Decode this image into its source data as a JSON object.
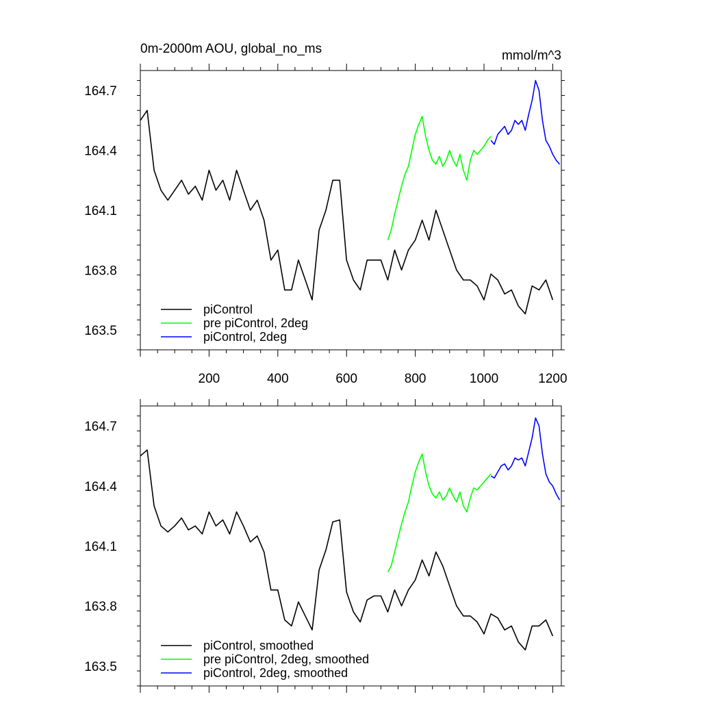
{
  "chart_data": [
    {
      "type": "line",
      "title": "0m-2000m AOU, global_no_ms",
      "units": "mmol/m^3",
      "xlim": [
        0,
        1225
      ],
      "ylim": [
        163.4,
        164.8
      ],
      "x_ticks": [
        200,
        400,
        600,
        800,
        1000,
        1200
      ],
      "x_tick_labels": [
        "200",
        "400",
        "600",
        "800",
        "1000",
        "1200"
      ],
      "y_ticks": [
        163.5,
        163.8,
        164.1,
        164.4,
        164.7
      ],
      "y_tick_labels": [
        "163.5",
        "163.8",
        "164.1",
        "164.4",
        "164.7"
      ],
      "legend_position": "bottom-left",
      "series": [
        {
          "name": "piControl",
          "color": "#000000",
          "x": [
            0,
            20,
            40,
            60,
            80,
            100,
            120,
            140,
            160,
            180,
            200,
            220,
            240,
            260,
            280,
            300,
            320,
            340,
            360,
            380,
            400,
            420,
            440,
            460,
            480,
            500,
            520,
            540,
            560,
            580,
            600,
            620,
            640,
            660,
            680,
            700,
            720,
            740,
            760,
            780,
            800,
            820,
            840,
            860,
            880,
            900,
            920,
            940,
            960,
            980,
            1000,
            1020,
            1040,
            1060,
            1080,
            1100,
            1120,
            1140,
            1160,
            1180,
            1200
          ],
          "y": [
            164.55,
            164.6,
            164.3,
            164.2,
            164.15,
            164.2,
            164.25,
            164.18,
            164.22,
            164.15,
            164.3,
            164.2,
            164.25,
            164.15,
            164.3,
            164.2,
            164.1,
            164.15,
            164.05,
            163.85,
            163.9,
            163.7,
            163.7,
            163.85,
            163.75,
            163.65,
            164.0,
            164.1,
            164.25,
            164.25,
            163.85,
            163.75,
            163.7,
            163.85,
            163.85,
            163.85,
            163.75,
            163.9,
            163.8,
            163.9,
            163.95,
            164.05,
            163.95,
            164.1,
            164.0,
            163.9,
            163.8,
            163.75,
            163.75,
            163.72,
            163.65,
            163.78,
            163.75,
            163.68,
            163.7,
            163.62,
            163.58,
            163.72,
            163.7,
            163.75,
            163.65
          ]
        },
        {
          "name": "pre piControl, 2deg",
          "color": "#00ff00",
          "x": [
            720,
            730,
            740,
            750,
            760,
            770,
            780,
            790,
            800,
            810,
            820,
            830,
            840,
            850,
            860,
            870,
            880,
            890,
            900,
            910,
            920,
            930,
            940,
            950,
            960,
            970,
            980,
            990,
            1000,
            1010,
            1020
          ],
          "y": [
            163.95,
            164.0,
            164.08,
            164.15,
            164.22,
            164.28,
            164.32,
            164.4,
            164.48,
            164.53,
            164.57,
            164.47,
            164.4,
            164.35,
            164.33,
            164.37,
            164.32,
            164.35,
            164.4,
            164.35,
            164.32,
            164.38,
            164.3,
            164.25,
            164.35,
            164.4,
            164.38,
            164.4,
            164.42,
            164.45,
            164.47
          ]
        },
        {
          "name": "piControl, 2deg",
          "color": "#0000ff",
          "x": [
            1020,
            1030,
            1040,
            1050,
            1060,
            1070,
            1080,
            1090,
            1100,
            1110,
            1120,
            1130,
            1140,
            1150,
            1160,
            1170,
            1180,
            1190,
            1200,
            1210,
            1220
          ],
          "y": [
            164.45,
            164.43,
            164.48,
            164.5,
            164.52,
            164.48,
            164.5,
            164.55,
            164.53,
            164.55,
            164.5,
            164.58,
            164.65,
            164.75,
            164.7,
            164.55,
            164.45,
            164.42,
            164.38,
            164.35,
            164.33
          ]
        }
      ]
    },
    {
      "type": "line",
      "title": "",
      "units": "",
      "xlim": [
        0,
        1225
      ],
      "ylim": [
        163.4,
        164.8
      ],
      "x_ticks": [
        200,
        400,
        600,
        800,
        1000,
        1200
      ],
      "x_tick_labels": [],
      "y_ticks": [
        163.5,
        163.8,
        164.1,
        164.4,
        164.7
      ],
      "y_tick_labels": [
        "163.5",
        "163.8",
        "164.1",
        "164.4",
        "164.7"
      ],
      "legend_position": "bottom-left",
      "series": [
        {
          "name": "piControl, smoothed",
          "color": "#000000",
          "x": [
            0,
            20,
            40,
            60,
            80,
            100,
            120,
            140,
            160,
            180,
            200,
            220,
            240,
            260,
            280,
            300,
            320,
            340,
            360,
            380,
            400,
            420,
            440,
            460,
            480,
            500,
            520,
            540,
            560,
            580,
            600,
            620,
            640,
            660,
            680,
            700,
            720,
            740,
            760,
            780,
            800,
            820,
            840,
            860,
            880,
            900,
            920,
            940,
            960,
            980,
            1000,
            1020,
            1040,
            1060,
            1080,
            1100,
            1120,
            1140,
            1160,
            1180,
            1200
          ],
          "y": [
            164.55,
            164.58,
            164.3,
            164.2,
            164.17,
            164.2,
            164.24,
            164.18,
            164.2,
            164.16,
            164.27,
            164.2,
            164.23,
            164.16,
            164.27,
            164.2,
            164.12,
            164.15,
            164.07,
            163.88,
            163.88,
            163.73,
            163.7,
            163.82,
            163.75,
            163.68,
            163.98,
            164.08,
            164.22,
            164.23,
            163.87,
            163.77,
            163.72,
            163.83,
            163.85,
            163.85,
            163.77,
            163.88,
            163.8,
            163.88,
            163.93,
            164.03,
            163.95,
            164.07,
            164.0,
            163.9,
            163.8,
            163.75,
            163.75,
            163.72,
            163.66,
            163.76,
            163.74,
            163.68,
            163.7,
            163.62,
            163.58,
            163.7,
            163.7,
            163.73,
            163.65
          ]
        },
        {
          "name": "pre piControl, 2deg, smoothed",
          "color": "#00ff00",
          "x": [
            720,
            730,
            740,
            750,
            760,
            770,
            780,
            790,
            800,
            810,
            820,
            830,
            840,
            850,
            860,
            870,
            880,
            890,
            900,
            910,
            920,
            930,
            940,
            950,
            960,
            970,
            980,
            990,
            1000,
            1010,
            1020
          ],
          "y": [
            163.97,
            164.0,
            164.07,
            164.14,
            164.21,
            164.27,
            164.32,
            164.4,
            164.47,
            164.52,
            164.56,
            164.47,
            164.4,
            164.36,
            164.34,
            164.37,
            164.33,
            164.35,
            164.39,
            164.35,
            164.32,
            164.37,
            164.3,
            164.27,
            164.34,
            164.39,
            164.38,
            164.4,
            164.42,
            164.44,
            164.46
          ]
        },
        {
          "name": "piControl, 2deg, smoothed",
          "color": "#0000ff",
          "x": [
            1020,
            1030,
            1040,
            1050,
            1060,
            1070,
            1080,
            1090,
            1100,
            1110,
            1120,
            1130,
            1140,
            1150,
            1160,
            1170,
            1180,
            1190,
            1200,
            1210,
            1220
          ],
          "y": [
            164.45,
            164.44,
            164.47,
            164.5,
            164.51,
            164.48,
            164.5,
            164.54,
            164.53,
            164.54,
            164.5,
            164.57,
            164.64,
            164.74,
            164.7,
            164.56,
            164.46,
            164.42,
            164.4,
            164.36,
            164.33
          ]
        }
      ]
    }
  ]
}
